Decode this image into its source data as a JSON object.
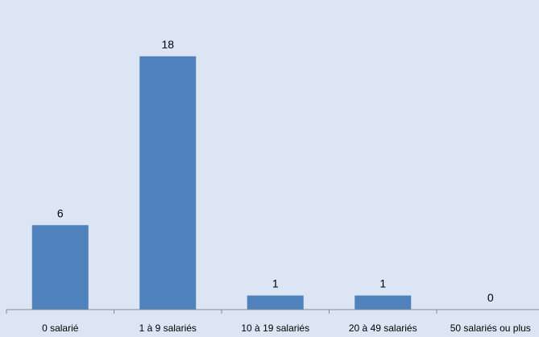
{
  "chart_data": {
    "type": "bar",
    "title": "",
    "xlabel": "",
    "ylabel": "",
    "categories": [
      "0 salarié",
      "1 à 9 salariés",
      "10 à 19 salariés",
      "20 à 49 salariés",
      "50 salariés ou plus"
    ],
    "values": [
      6,
      18,
      1,
      1,
      0
    ],
    "ylim": [
      0,
      22
    ],
    "grid": false,
    "legend": "none",
    "bar_color": "#4f81bd",
    "background_color": "#dbe5f4"
  }
}
